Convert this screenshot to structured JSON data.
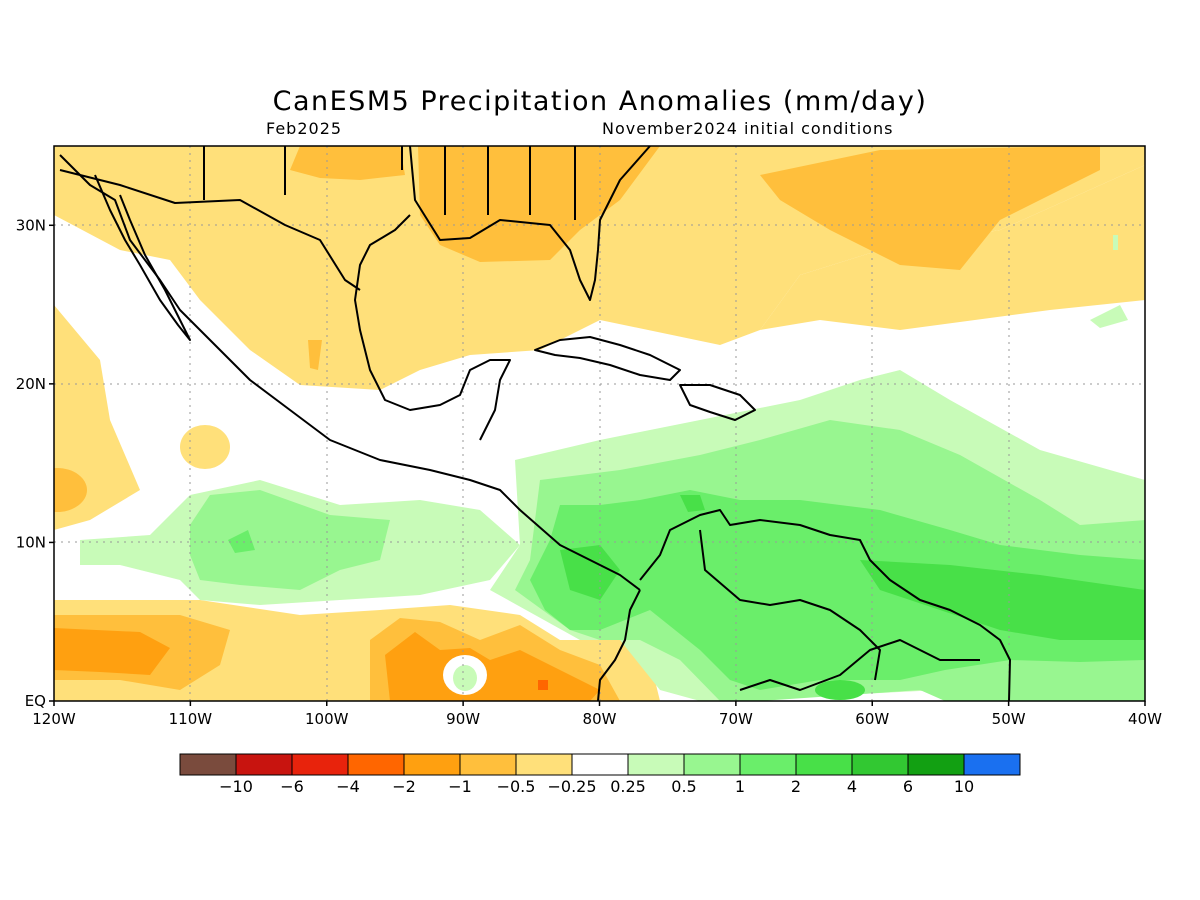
{
  "title": "CanESM5 Precipitation Anomalies (mm/day)",
  "subtitle_left": "Feb2025",
  "subtitle_right": "November2024 initial conditions",
  "map": {
    "region": "Central America and Caribbean",
    "lon_range": [
      -120,
      -40
    ],
    "lat_range": [
      0,
      35
    ],
    "grid": true,
    "x_ticks": [
      "120W",
      "110W",
      "100W",
      "90W",
      "80W",
      "70W",
      "60W",
      "50W",
      "40W"
    ],
    "y_ticks": [
      "EQ",
      "10N",
      "20N",
      "30N"
    ]
  },
  "colorbar": {
    "labels": [
      "−10",
      "−6",
      "−4",
      "−2",
      "−1",
      "−0.5",
      "−0.25",
      "0.25",
      "0.5",
      "1",
      "2",
      "4",
      "6",
      "10"
    ],
    "colors": [
      "#7a4b3d",
      "#c8140f",
      "#e8230c",
      "#ff6600",
      "#ffa010",
      "#ffbf3c",
      "#ffe07a",
      "#ffffff",
      "#c8fbb8",
      "#98f690",
      "#6aee6a",
      "#48e048",
      "#32c832",
      "#12a012",
      "#1a70f0"
    ]
  }
}
